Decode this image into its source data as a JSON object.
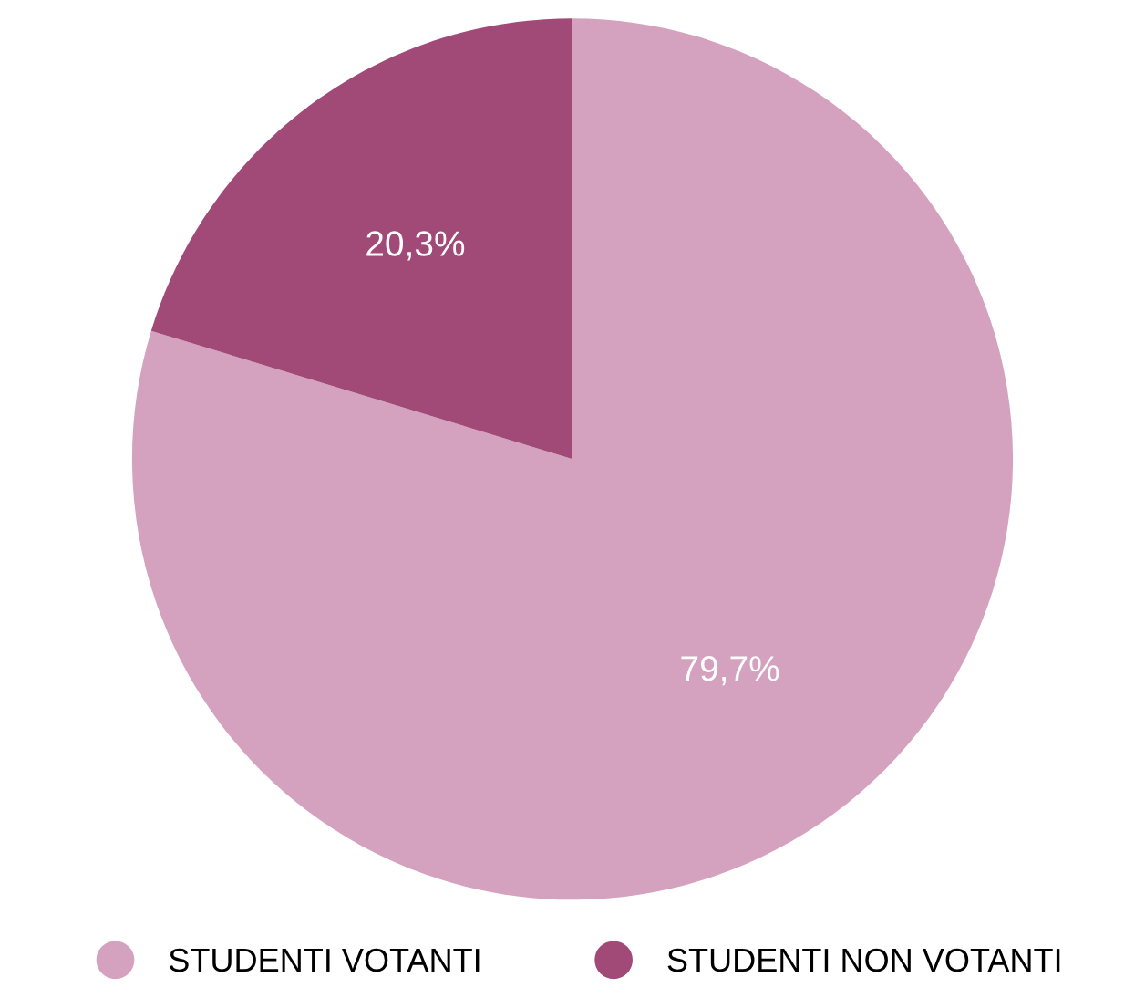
{
  "chart_data": {
    "type": "pie",
    "categories": [
      "STUDENTI VOTANTI",
      "STUDENTI NON VOTANTI"
    ],
    "values": [
      79.7,
      20.3
    ],
    "colors": [
      "#d4a2be",
      "#a14a77"
    ],
    "value_labels": [
      "79,7%",
      "20,3%"
    ],
    "legend": "bottom"
  }
}
